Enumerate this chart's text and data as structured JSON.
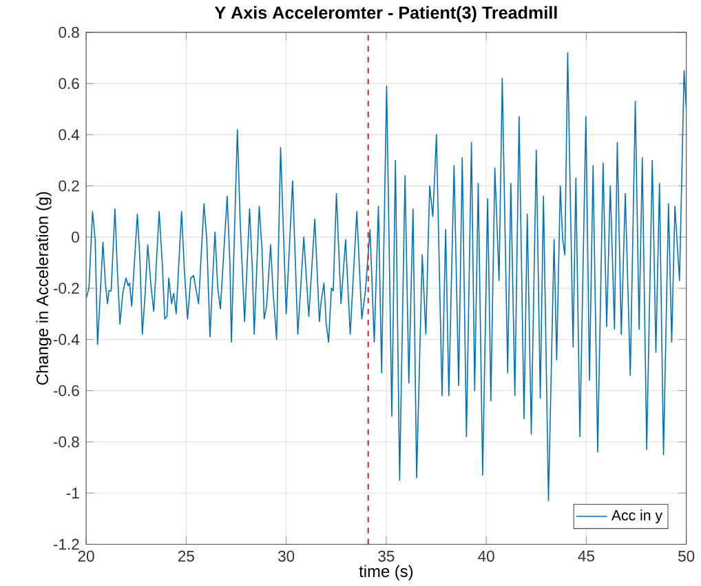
{
  "chart_data": {
    "type": "line",
    "title": "Y Axis Acceleromter - Patient(3) Treadmill",
    "xlabel": "time (s)",
    "ylabel": "Change in Acceleration (g)",
    "xlim": [
      20,
      50
    ],
    "ylim": [
      -1.2,
      0.8
    ],
    "xticks": [
      20,
      25,
      30,
      35,
      40,
      45,
      50
    ],
    "yticks": [
      -1.2,
      -1,
      -0.8,
      -0.6,
      -0.4,
      -0.2,
      0,
      0.2,
      0.4,
      0.6,
      0.8
    ],
    "grid": true,
    "legend": "bottom right",
    "marker": "none",
    "line_style": "solid",
    "ref_lines": [
      {
        "axis": "x",
        "value": 34.1,
        "color": "#d62728",
        "line_style": "dashed"
      }
    ],
    "series": [
      {
        "name": "Acc in y",
        "color": "#0072bd",
        "x": [
          20,
          20.14,
          20.32,
          20.45,
          20.57,
          20.68,
          20.84,
          20.96,
          21.07,
          21.14,
          21.25,
          21.44,
          21.55,
          21.69,
          21.83,
          21.99,
          22.1,
          22.17,
          22.28,
          22.56,
          22.69,
          22.81,
          22.95,
          23.08,
          23.24,
          23.38,
          23.65,
          23.81,
          23.93,
          24.04,
          24.13,
          24.27,
          24.38,
          24.5,
          24.77,
          24.91,
          25.07,
          25.23,
          25.37,
          25.48,
          25.62,
          25.89,
          26.03,
          26.19,
          26.32,
          26.44,
          26.58,
          26.71,
          27.05,
          27.19,
          27.26,
          27.56,
          27.7,
          27.92,
          28.17,
          28.31,
          28.4,
          28.65,
          28.79,
          28.9,
          29.02,
          29.22,
          29.35,
          29.52,
          29.72,
          30,
          30.32,
          30.58,
          30.88,
          31.13,
          31.43,
          31.66,
          31.75,
          31.89,
          32,
          32.12,
          32.26,
          32.35,
          32.51,
          32.74,
          32.97,
          33.2,
          33.53,
          33.78,
          33.96,
          34.19,
          34.4,
          34.61,
          34.77,
          35.02,
          35.28,
          35.46,
          35.67,
          35.94,
          36.13,
          36.34,
          36.52,
          36.8,
          36.98,
          37.17,
          37.33,
          37.51,
          37.79,
          37.97,
          38.13,
          38.39,
          38.62,
          38.8,
          39.01,
          39.26,
          39.42,
          39.6,
          39.82,
          40.07,
          40.23,
          40.43,
          40.64,
          40.8,
          41.07,
          41.23,
          41.43,
          41.64,
          41.89,
          42.05,
          42.25,
          42.5,
          42.7,
          42.86,
          43.11,
          43.39,
          43.52,
          43.7,
          43.82,
          43.93,
          44.07,
          44.34,
          44.48,
          44.68,
          44.98,
          45.16,
          45.34,
          45.57,
          45.84,
          46.02,
          46.2,
          46.41,
          46.55,
          46.75,
          46.95,
          47.2,
          47.45,
          47.64,
          47.8,
          48.02,
          48.3,
          48.48,
          48.66,
          48.86,
          49.11,
          49.27,
          49.43,
          49.66,
          49.89,
          50
        ],
        "values": [
          -0.24,
          -0.2,
          0.1,
          -0.01,
          -0.42,
          -0.26,
          -0.02,
          -0.18,
          -0.26,
          -0.21,
          -0.21,
          0.11,
          -0.11,
          -0.34,
          -0.22,
          -0.16,
          -0.19,
          -0.18,
          -0.27,
          0.09,
          -0.09,
          -0.38,
          -0.22,
          -0.03,
          -0.19,
          -0.29,
          0.1,
          -0.11,
          -0.32,
          -0.31,
          -0.16,
          -0.26,
          -0.22,
          -0.3,
          0.1,
          -0.13,
          -0.32,
          -0.16,
          -0.15,
          -0.2,
          -0.26,
          0.13,
          -0.01,
          -0.39,
          -0.17,
          0.02,
          -0.2,
          -0.28,
          0.16,
          -0.11,
          -0.41,
          0.42,
          0.06,
          -0.33,
          0.11,
          -0.13,
          -0.38,
          0.12,
          -0.05,
          -0.32,
          -0.27,
          -0.03,
          -0.22,
          -0.4,
          0.35,
          -0.3,
          0.22,
          -0.38,
          0,
          -0.31,
          0.07,
          -0.33,
          -0.25,
          -0.18,
          -0.34,
          -0.41,
          -0.2,
          -0.21,
          0.17,
          -0.26,
          -0.01,
          -0.38,
          0.1,
          -0.32,
          -0.21,
          0.03,
          -0.41,
          0.12,
          -0.53,
          0.59,
          -0.7,
          0.3,
          -0.95,
          0.24,
          -0.57,
          0.11,
          -0.94,
          -0.07,
          -0.38,
          0.2,
          0.08,
          0.4,
          -0.62,
          0.03,
          -0.62,
          0.28,
          -0.58,
          0.31,
          -0.78,
          0.37,
          -0.6,
          0.21,
          -0.93,
          0.15,
          -0.64,
          0.27,
          -0.17,
          0.62,
          -0.53,
          0.21,
          -0.62,
          0.47,
          -0.71,
          0.09,
          -0.77,
          0.34,
          -0.63,
          0.16,
          -1.03,
          -0.01,
          -0.48,
          0.2,
          -0.01,
          -0.07,
          0.72,
          -0.43,
          0.23,
          -0.78,
          0.47,
          -0.56,
          0.28,
          -0.84,
          0.29,
          -0.35,
          0.2,
          -0.36,
          0.37,
          -0.38,
          0.17,
          -0.54,
          0.53,
          -0.36,
          0.31,
          -0.83,
          0.3,
          -0.45,
          0.21,
          -0.85,
          0.13,
          -0.41,
          0.12,
          -0.17,
          0.65,
          0.5
        ]
      }
    ]
  }
}
